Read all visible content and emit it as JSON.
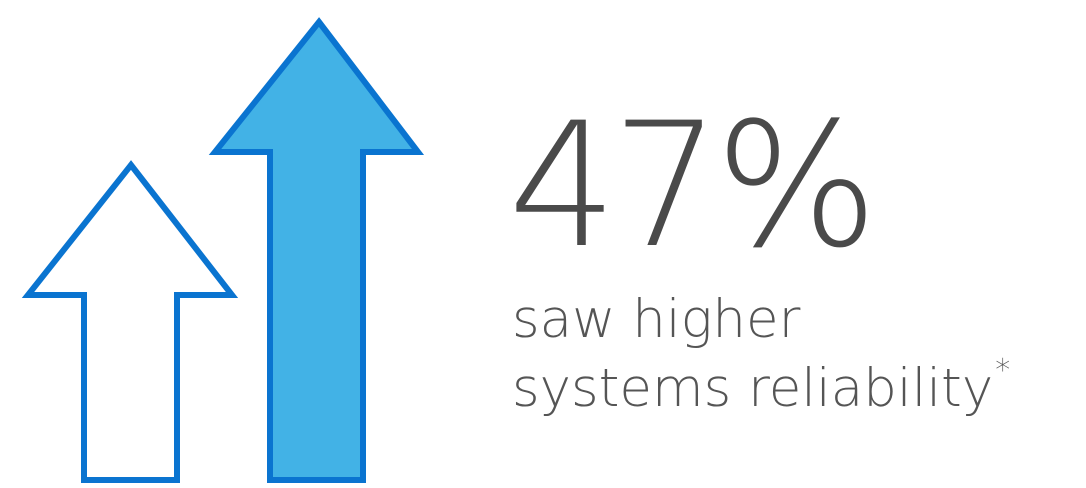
{
  "stat": {
    "value": "47%",
    "caption_line1": "saw higher",
    "caption_line2": "systems reliability",
    "footnote_mark": "*"
  },
  "colors": {
    "arrow_outline": "#0a74d0",
    "arrow_fill_large": "#42b2e6",
    "arrow_fill_small": "#ffffff",
    "text": "#4a4a4a"
  },
  "icons": {
    "small_arrow": "up-arrow-outline-icon",
    "large_arrow": "up-arrow-filled-icon"
  }
}
